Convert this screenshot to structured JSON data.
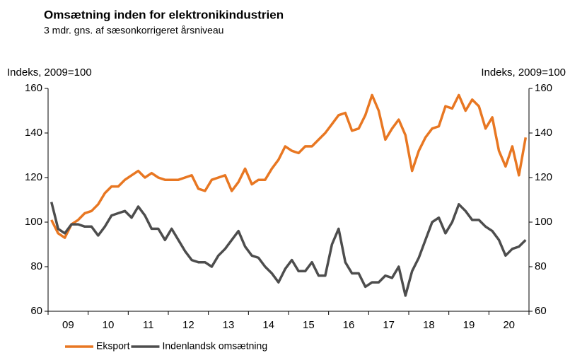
{
  "chart_data": {
    "type": "line",
    "title": "Omsætning inden for elektronikindustrien",
    "subtitle": "3 mdr. gns. af sæsonkorrigeret årsniveau",
    "y_label": "Indeks, 2009=100",
    "y2_label": "Indeks, 2009=100",
    "categories": [
      null,
      null,
      null,
      "09",
      null,
      null,
      null,
      null,
      null,
      "10",
      null,
      null,
      null,
      null,
      null,
      "11",
      null,
      null,
      null,
      null,
      null,
      "12",
      null,
      null,
      null,
      null,
      null,
      "13",
      null,
      null,
      null,
      null,
      null,
      "14",
      null,
      null,
      null,
      null,
      null,
      "15",
      null,
      null,
      null,
      null,
      null,
      "16",
      null,
      null,
      null,
      null,
      null,
      "17",
      null,
      null,
      null,
      null,
      null,
      "18",
      null,
      null,
      null,
      null,
      null,
      "19",
      null,
      null,
      null,
      null,
      null,
      "20",
      null,
      null
    ],
    "series": [
      {
        "name": "Eksport",
        "color": "#e87722",
        "values": [
          101,
          95,
          93,
          99,
          101,
          104,
          105,
          108,
          113,
          116,
          116,
          119,
          121,
          123,
          120,
          122,
          120,
          119,
          119,
          119,
          120,
          121,
          115,
          114,
          119,
          120,
          121,
          114,
          118,
          124,
          117,
          119,
          119,
          124,
          128,
          134,
          132,
          131,
          134,
          134,
          137,
          140,
          144,
          148,
          149,
          141,
          142,
          148,
          157,
          150,
          137,
          142,
          146,
          139,
          123,
          132,
          138,
          142,
          143,
          152,
          151,
          157,
          150,
          155,
          152,
          142,
          147,
          132,
          125,
          134,
          121,
          138
        ]
      },
      {
        "name": "Indenlandsk omsætning",
        "color": "#4d4d4d",
        "values": [
          109,
          97,
          95,
          99,
          99,
          98,
          98,
          94,
          98,
          103,
          104,
          105,
          102,
          107,
          103,
          97,
          97,
          92,
          97,
          92,
          87,
          83,
          82,
          82,
          80,
          85,
          88,
          92,
          96,
          89,
          85,
          84,
          80,
          77,
          73,
          79,
          83,
          78,
          78,
          82,
          76,
          76,
          90,
          97,
          82,
          77,
          77,
          71,
          73,
          73,
          76,
          75,
          80,
          67,
          78,
          84,
          92,
          100,
          102,
          95,
          100,
          108,
          105,
          101,
          101,
          98,
          96,
          92,
          85,
          88,
          89,
          92
        ]
      }
    ],
    "ylim": [
      60,
      160
    ],
    "yticks": [
      60,
      80,
      100,
      120,
      140,
      160
    ],
    "y2lim": [
      60,
      160
    ],
    "y2ticks": [
      60,
      80,
      100,
      120,
      140,
      160
    ],
    "legend": "bottom"
  }
}
